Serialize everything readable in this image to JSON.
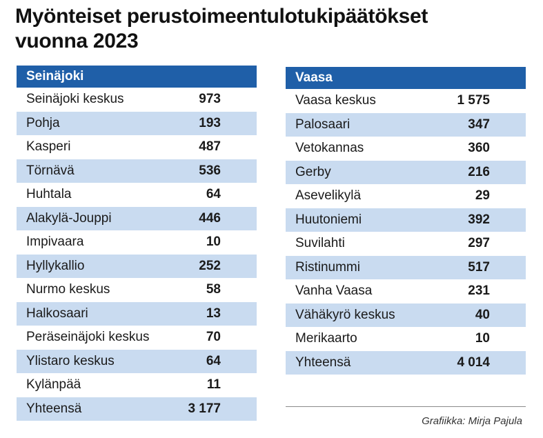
{
  "title": [
    "Myönteiset perustoimeentulotukipäätökset",
    "vuonna 2023"
  ],
  "tables": [
    {
      "header": "Seinäjoki",
      "rows": [
        [
          "Seinäjoki keskus",
          "973"
        ],
        [
          "Pohja",
          "193"
        ],
        [
          "Kasperi",
          "487"
        ],
        [
          "Törnävä",
          "536"
        ],
        [
          "Huhtala",
          "64"
        ],
        [
          "Alakylä-Jouppi",
          "446"
        ],
        [
          "Impivaara",
          "10"
        ],
        [
          "Hyllykallio",
          "252"
        ],
        [
          "Nurmo keskus",
          "58"
        ],
        [
          "Halkosaari",
          "13"
        ],
        [
          "Peräseinäjoki keskus",
          "70"
        ],
        [
          "Ylistaro keskus",
          "64"
        ],
        [
          "Kylänpää",
          "11"
        ],
        [
          "Yhteensä",
          "3 177"
        ]
      ]
    },
    {
      "header": "Vaasa",
      "rows": [
        [
          "Vaasa keskus",
          "1 575"
        ],
        [
          "Palosaari",
          "347"
        ],
        [
          "Vetokannas",
          "360"
        ],
        [
          "Gerby",
          "216"
        ],
        [
          "Asevelikylä",
          "29"
        ],
        [
          "Huutoniemi",
          "392"
        ],
        [
          "Suvilahti",
          "297"
        ],
        [
          "Ristinummi",
          "517"
        ],
        [
          "Vanha Vaasa",
          "231"
        ],
        [
          "Vähäkyrö keskus",
          "40"
        ],
        [
          "Merikaarto",
          "10"
        ],
        [
          "Yhteensä",
          "4 014"
        ]
      ]
    }
  ],
  "credit": "Grafiikka: Mirja Pajula"
}
